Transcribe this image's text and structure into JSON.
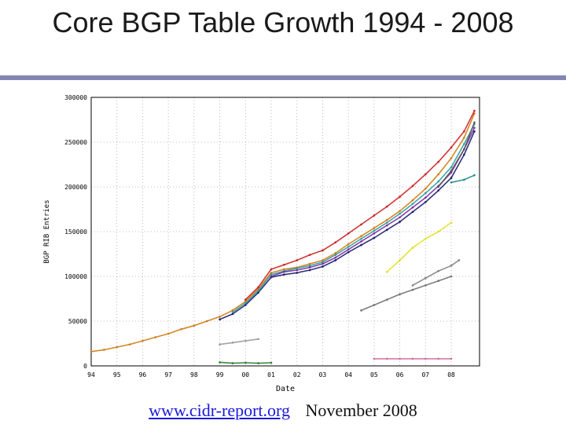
{
  "slide": {
    "title": "Core BGP Table Growth 1994 - 2008",
    "footer_link": "www.cidr-report.org",
    "footer_date": "November 2008",
    "rule_color": "#8585b5",
    "link_color": "#1a1ad9"
  },
  "chart_data": {
    "type": "scatter",
    "title": "",
    "xlabel": "Date",
    "ylabel": "BGP RIB Entries",
    "x_ticks": [
      "94",
      "95",
      "96",
      "97",
      "98",
      "99",
      "00",
      "01",
      "02",
      "03",
      "04",
      "05",
      "06",
      "07",
      "08"
    ],
    "y_ticks": [
      0,
      50000,
      100000,
      150000,
      200000,
      250000,
      300000
    ],
    "xlim": [
      1994.0,
      2009.1
    ],
    "ylim": [
      0,
      300000
    ],
    "grid": true,
    "legend": "none",
    "series": [
      {
        "color": "#d07a10",
        "x": [
          1994.0,
          1994.5,
          1995.0,
          1995.5,
          1996.0,
          1996.5,
          1997.0,
          1997.5,
          1998.0,
          1998.5,
          1999.0,
          1999.5,
          2000.0,
          2000.5,
          2001.0,
          2001.5,
          2002.0,
          2002.5,
          2003.0,
          2003.5,
          2004.0,
          2004.5,
          2005.0,
          2005.5,
          2006.0,
          2006.5,
          2007.0,
          2007.5,
          2008.0,
          2008.5,
          2008.9
        ],
        "y": [
          16000,
          18000,
          21000,
          24000,
          28000,
          32000,
          36000,
          41000,
          45000,
          50000,
          55000,
          62000,
          72000,
          86000,
          104000,
          108000,
          110000,
          114000,
          118000,
          126000,
          136000,
          145000,
          154000,
          163000,
          173000,
          185000,
          198000,
          214000,
          232000,
          255000,
          282000
        ]
      },
      {
        "color": "#cc2020",
        "x": [
          2000.0,
          2000.5,
          2001.0,
          2001.5,
          2002.0,
          2002.5,
          2003.0,
          2003.5,
          2004.0,
          2004.5,
          2005.0,
          2005.5,
          2006.0,
          2006.5,
          2007.0,
          2007.5,
          2008.0,
          2008.5,
          2008.9
        ],
        "y": [
          74000,
          88000,
          108000,
          113000,
          118000,
          124000,
          129000,
          138000,
          148000,
          158000,
          168000,
          178000,
          189000,
          201000,
          214000,
          228000,
          244000,
          262000,
          285000
        ]
      },
      {
        "color": "#1a1a6e",
        "x": [
          1999.0,
          1999.5,
          2000.0,
          2000.5,
          2001.0,
          2001.5,
          2002.0,
          2002.5,
          2003.0,
          2003.5,
          2004.0,
          2004.5,
          2005.0,
          2005.5,
          2006.0,
          2006.5,
          2007.0,
          2007.5,
          2008.0,
          2008.5,
          2008.9
        ],
        "y": [
          52000,
          58000,
          68000,
          82000,
          99000,
          102000,
          104000,
          107000,
          111000,
          118000,
          127000,
          135000,
          143000,
          152000,
          161000,
          172000,
          183000,
          196000,
          210000,
          236000,
          262000
        ]
      },
      {
        "color": "#2a9e9e",
        "x": [
          1999.5,
          2000.0,
          2000.5,
          2001.0,
          2001.5,
          2002.0,
          2002.5,
          2003.0,
          2003.5,
          2004.0,
          2004.5,
          2005.0,
          2005.5,
          2006.0,
          2006.5,
          2007.0,
          2007.5,
          2008.0,
          2008.5,
          2008.9
        ],
        "y": [
          60000,
          70000,
          84000,
          102000,
          106000,
          109000,
          112000,
          116000,
          124000,
          133000,
          142000,
          151000,
          160000,
          170000,
          181000,
          193000,
          206000,
          222000,
          248000,
          270000
        ]
      },
      {
        "color": "#7a2a9e",
        "x": [
          2001.0,
          2001.5,
          2002.0,
          2002.5,
          2003.0,
          2003.5,
          2004.0,
          2004.5,
          2005.0,
          2005.5,
          2006.0,
          2006.5,
          2007.0,
          2007.5,
          2008.0,
          2008.5,
          2008.9
        ],
        "y": [
          100000,
          105000,
          107000,
          110000,
          114000,
          121000,
          130000,
          139000,
          148000,
          157000,
          166000,
          177000,
          188000,
          201000,
          216000,
          242000,
          266000
        ]
      },
      {
        "color": "#555555",
        "x": [
          2007.5,
          2008.0,
          2008.5,
          2008.9
        ],
        "y": [
          200000,
          218000,
          242000,
          272000
        ]
      },
      {
        "color": "#e0e020",
        "x": [
          2005.5,
          2006.0,
          2006.5,
          2007.0,
          2007.5,
          2008.0
        ],
        "y": [
          105000,
          118000,
          132000,
          142000,
          150000,
          160000
        ]
      },
      {
        "color": "#808080",
        "x": [
          2006.5,
          2007.0,
          2007.5,
          2008.0,
          2008.3
        ],
        "y": [
          90000,
          98000,
          106000,
          112000,
          118000
        ]
      },
      {
        "color": "#707070",
        "x": [
          2004.5,
          2005.0,
          2005.5,
          2006.0,
          2006.5,
          2007.0,
          2007.5,
          2008.0
        ],
        "y": [
          62000,
          68000,
          74000,
          80000,
          85000,
          90000,
          95000,
          100000
        ]
      },
      {
        "color": "#d06a9a",
        "x": [
          2005.0,
          2005.5,
          2006.0,
          2006.5,
          2007.0,
          2007.5,
          2008.0
        ],
        "y": [
          8000,
          8000,
          8000,
          8000,
          8000,
          8000,
          8000
        ]
      },
      {
        "color": "#2a7a2a",
        "x": [
          1999.0,
          1999.5,
          2000.0,
          2000.5,
          2001.0
        ],
        "y": [
          4000,
          3000,
          3500,
          3000,
          3500
        ]
      },
      {
        "color": "#9a9a9a",
        "x": [
          1999.0,
          1999.5,
          2000.0,
          2000.5
        ],
        "y": [
          24000,
          26000,
          28000,
          30000
        ]
      },
      {
        "color": "#1a8a8a",
        "x": [
          2008.0,
          2008.5,
          2008.9
        ],
        "y": [
          205000,
          208000,
          213000
        ]
      }
    ]
  }
}
